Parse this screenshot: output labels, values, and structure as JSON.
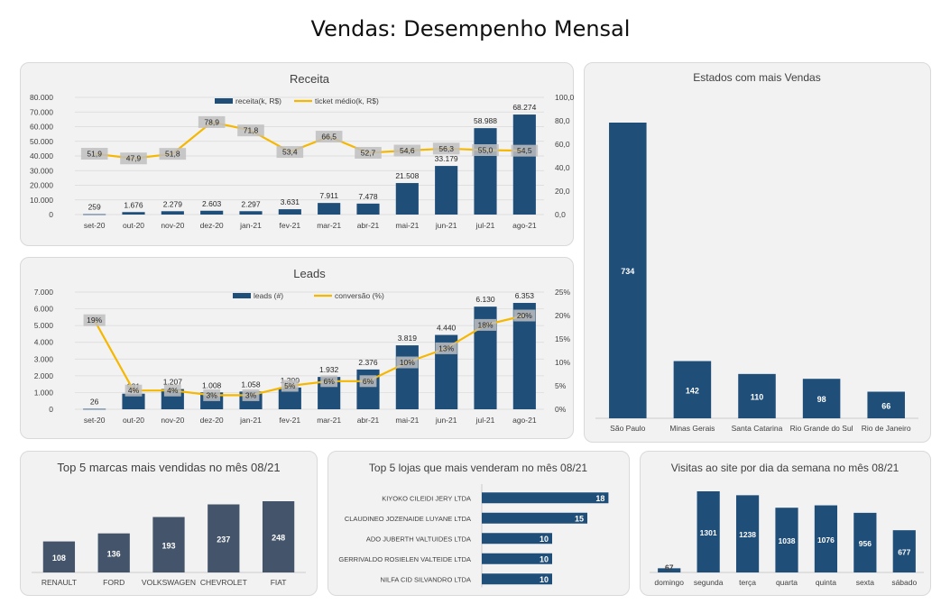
{
  "page": {
    "title": "Vendas: Desempenho Mensal"
  },
  "chart_data": [
    {
      "id": "receita",
      "type": "bar+line",
      "title": "Receita",
      "categories": [
        "set-20",
        "out-20",
        "nov-20",
        "dez-20",
        "jan-21",
        "fev-21",
        "mar-21",
        "abr-21",
        "mai-21",
        "jun-21",
        "jul-21",
        "ago-21"
      ],
      "series": [
        {
          "name": "receita(k, R$)",
          "type": "bar",
          "axis": "left",
          "values": [
            259,
            1676,
            2279,
            2603,
            2297,
            3631,
            7911,
            7478,
            21508,
            33179,
            58988,
            68274
          ],
          "labels": [
            "259",
            "1.676",
            "2.279",
            "2.603",
            "2.297",
            "3.631",
            "7.911",
            "7.478",
            "21.508",
            "33.179",
            "58.988",
            "68.274"
          ]
        },
        {
          "name": "ticket médio(k, R$)",
          "type": "line",
          "axis": "right",
          "values": [
            51.9,
            47.9,
            51.8,
            78.9,
            71.8,
            53.4,
            66.5,
            52.7,
            54.6,
            56.3,
            55.0,
            54.5
          ],
          "labels": [
            "51,9",
            "47,9",
            "51,8",
            "78,9",
            "71,8",
            "53,4",
            "66,5",
            "52,7",
            "54,6",
            "56,3",
            "55,0",
            "54,5"
          ]
        }
      ],
      "ylim": [
        0,
        80000
      ],
      "yticks": [
        "0",
        "10.000",
        "20.000",
        "30.000",
        "40.000",
        "50.000",
        "60.000",
        "70.000",
        "80.000"
      ],
      "y2lim": [
        0,
        100
      ],
      "y2ticks": [
        "0,0",
        "20,0",
        "40,0",
        "60,0",
        "80,0",
        "100,0"
      ],
      "legend": "top-center",
      "grid": true
    },
    {
      "id": "leads",
      "type": "bar+line",
      "title": "Leads",
      "categories": [
        "set-20",
        "out-20",
        "nov-20",
        "dez-20",
        "jan-21",
        "fev-21",
        "mar-21",
        "abr-21",
        "mai-21",
        "jun-21",
        "jul-21",
        "ago-21"
      ],
      "series": [
        {
          "name": "leads (#)",
          "type": "bar",
          "axis": "left",
          "values": [
            26,
            931,
            1207,
            1008,
            1058,
            1300,
            1932,
            2376,
            3819,
            4440,
            6130,
            6353
          ],
          "labels": [
            "26",
            "931",
            "1.207",
            "1.008",
            "1.058",
            "1.300",
            "1.932",
            "2.376",
            "3.819",
            "4.440",
            "6.130",
            "6.353"
          ]
        },
        {
          "name": "conversão (%)",
          "type": "line",
          "axis": "right",
          "values": [
            19,
            4,
            4,
            3,
            3,
            5,
            6,
            6,
            10,
            13,
            18,
            20
          ],
          "labels": [
            "19%",
            "4%",
            "4%",
            "3%",
            "3%",
            "5%",
            "6%",
            "6%",
            "10%",
            "13%",
            "18%",
            "20%"
          ]
        }
      ],
      "ylim": [
        0,
        7000
      ],
      "yticks": [
        "0",
        "1.000",
        "2.000",
        "3.000",
        "4.000",
        "5.000",
        "6.000",
        "7.000"
      ],
      "y2lim": [
        0,
        25
      ],
      "y2ticks": [
        "0%",
        "5%",
        "10%",
        "15%",
        "20%",
        "25%"
      ],
      "legend": "top-center",
      "grid": true
    },
    {
      "id": "estados",
      "type": "bar",
      "title": "Estados com mais Vendas",
      "categories": [
        "São Paulo",
        "Minas Gerais",
        "Santa Catarina",
        "Rio Grande do Sul",
        "Rio de Janeiro"
      ],
      "values": [
        734,
        142,
        110,
        98,
        66
      ],
      "labels": [
        "734",
        "142",
        "110",
        "98",
        "66"
      ]
    },
    {
      "id": "marcas",
      "type": "bar",
      "title": "Top 5 marcas mais vendidas no mês 08/21",
      "categories": [
        "RENAULT",
        "FORD",
        "VOLKSWAGEN",
        "CHEVROLET",
        "FIAT"
      ],
      "values": [
        108,
        136,
        193,
        237,
        248
      ],
      "labels": [
        "108",
        "136",
        "193",
        "237",
        "248"
      ]
    },
    {
      "id": "lojas",
      "type": "bar",
      "orientation": "horizontal",
      "title": "Top 5 lojas que mais venderam no mês 08/21",
      "categories": [
        "KIYOKO CILEIDI JERY LTDA",
        "CLAUDINEO JOZENAIDE LUYANE LTDA",
        "ADO JUBERTH VALTUIDES LTDA",
        "GERRIVALDO ROSIELEN VALTEIDE LTDA",
        "NILFA CID SILVANDRO LTDA"
      ],
      "values": [
        18,
        15,
        10,
        10,
        10
      ],
      "labels": [
        "18",
        "15",
        "10",
        "10",
        "10"
      ]
    },
    {
      "id": "visitas",
      "type": "bar",
      "title": "Visitas ao site por dia da semana no mês 08/21",
      "categories": [
        "domingo",
        "segunda",
        "terça",
        "quarta",
        "quinta",
        "sexta",
        "sábado"
      ],
      "values": [
        67,
        1301,
        1238,
        1038,
        1076,
        956,
        677
      ],
      "labels": [
        "67",
        "1301",
        "1238",
        "1038",
        "1076",
        "956",
        "677"
      ]
    }
  ],
  "colors": {
    "bar": "#1f4e79",
    "bar_dark": "#44546a",
    "line": "#f5b700",
    "label_box": "#bfbfbf",
    "panel_bg": "#f2f2f2",
    "panel_border": "#d9d9d9",
    "grid": "#d9d9d9",
    "text": "#404040"
  }
}
